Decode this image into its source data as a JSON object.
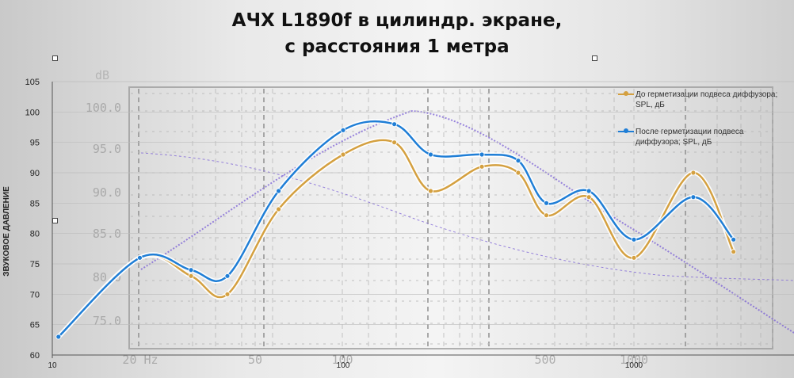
{
  "title_lines": [
    "АЧХ L1890f в цилиндр. экране,",
    "с расстояния 1 метра"
  ],
  "chart_data": {
    "type": "line",
    "title": "АЧХ L1890f в цилиндр. экране, с расстояния 1 метра",
    "xlabel": "",
    "ylabel": "ЗВУКОВОЕ ДАВЛЕНИЕ",
    "x_scale": "log",
    "xlim": [
      10,
      3000
    ],
    "ylim": [
      60,
      105
    ],
    "x_ticks": [
      10,
      100,
      1000
    ],
    "y_ticks": [
      60,
      65,
      70,
      75,
      80,
      85,
      90,
      95,
      100,
      105
    ],
    "grid": true,
    "legend_position": "top-right",
    "series": [
      {
        "name": "До герметизации подвеса диффузора; SPL, дБ",
        "color": "#d4a040",
        "points": [
          [
            10.5,
            63
          ],
          [
            20,
            76
          ],
          [
            30,
            73
          ],
          [
            40,
            70
          ],
          [
            60,
            84
          ],
          [
            100,
            93
          ],
          [
            150,
            95
          ],
          [
            200,
            87
          ],
          [
            300,
            91
          ],
          [
            400,
            90
          ],
          [
            500,
            83
          ],
          [
            700,
            86
          ],
          [
            1000,
            76
          ],
          [
            1600,
            90
          ],
          [
            2200,
            77
          ]
        ]
      },
      {
        "name": "После герметизации подвеса диффузора; SPL, дБ",
        "color": "#1f7ed6",
        "points": [
          [
            10.5,
            63
          ],
          [
            20,
            76
          ],
          [
            30,
            74
          ],
          [
            40,
            73
          ],
          [
            60,
            87
          ],
          [
            100,
            97
          ],
          [
            150,
            98
          ],
          [
            200,
            93
          ],
          [
            300,
            93
          ],
          [
            400,
            92
          ],
          [
            500,
            85
          ],
          [
            700,
            87
          ],
          [
            1000,
            79
          ],
          [
            1600,
            86
          ],
          [
            2200,
            79
          ]
        ]
      }
    ],
    "background_overlay": {
      "unit_label": "dB",
      "x_tick_labels": [
        "20 Hz",
        "50",
        "100",
        "500",
        "1000"
      ],
      "y_tick_labels": [
        "100.0",
        "95.0",
        "90.0",
        "85.0",
        "80.0",
        "75.0"
      ],
      "curves_color": "#7a5fd6"
    }
  }
}
